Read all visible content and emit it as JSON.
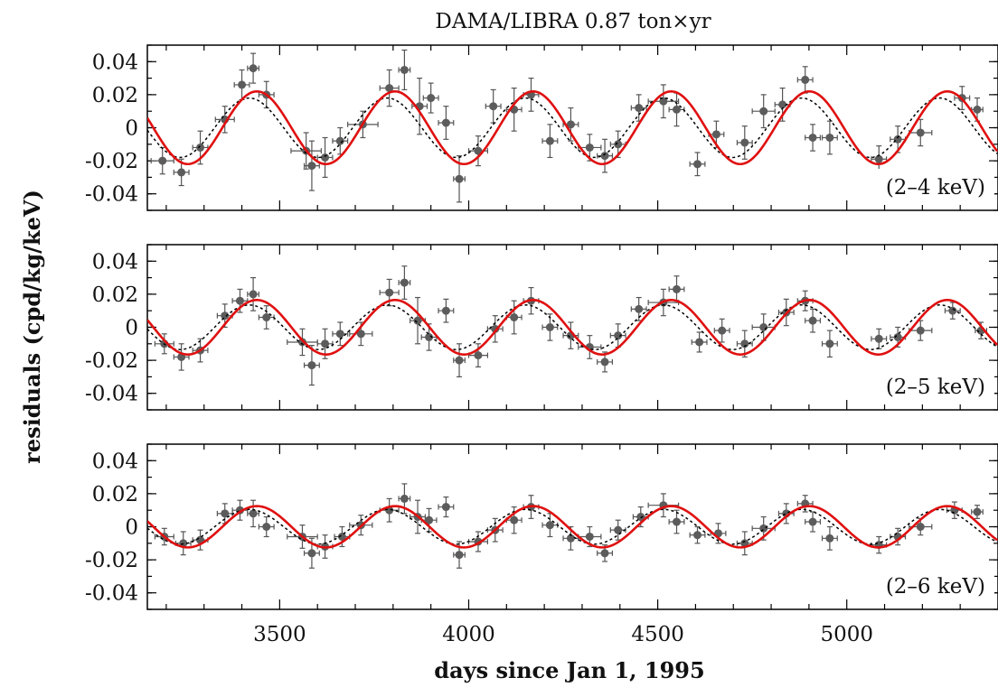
{
  "chart_data": {
    "type": "scatter",
    "title": "DAMA/LIBRA 0.87 ton×yr",
    "xlabel": "days since Jan 1, 1995",
    "ylabel": "residuals (cpd/kg/keV)",
    "xlim": [
      3150,
      5400
    ],
    "ylim": [
      -0.05,
      0.05
    ],
    "x_ticks": [
      3500,
      4000,
      4500,
      5000
    ],
    "y_ticks": [
      0.04,
      0.02,
      0,
      -0.02,
      -0.04
    ],
    "y_tick_labels": [
      "0.04",
      "0.02",
      "0",
      "-0.02",
      "-0.04"
    ],
    "panels": [
      {
        "range_label": "(2–4 keV)",
        "red_curve": {
          "amplitude": 0.022,
          "period": 365.25,
          "phase": 152.5
        },
        "dotted_curve": {
          "amplitude": 0.018,
          "period": 365.25,
          "phase": 132
        },
        "points": [
          {
            "x": 3190,
            "y": -0.02,
            "xerr": 30,
            "yerr": 0.008
          },
          {
            "x": 3240,
            "y": -0.027,
            "xerr": 20,
            "yerr": 0.008
          },
          {
            "x": 3290,
            "y": -0.012,
            "xerr": 20,
            "yerr": 0.01
          },
          {
            "x": 3355,
            "y": 0.005,
            "xerr": 25,
            "yerr": 0.008
          },
          {
            "x": 3400,
            "y": 0.026,
            "xerr": 20,
            "yerr": 0.009
          },
          {
            "x": 3430,
            "y": 0.036,
            "xerr": 15,
            "yerr": 0.009
          },
          {
            "x": 3465,
            "y": 0.02,
            "xerr": 20,
            "yerr": 0.008
          },
          {
            "x": 3570,
            "y": -0.014,
            "xerr": 40,
            "yerr": 0.011
          },
          {
            "x": 3585,
            "y": -0.023,
            "xerr": 20,
            "yerr": 0.015
          },
          {
            "x": 3620,
            "y": -0.018,
            "xerr": 20,
            "yerr": 0.012
          },
          {
            "x": 3660,
            "y": -0.008,
            "xerr": 20,
            "yerr": 0.008
          },
          {
            "x": 3720,
            "y": 0.002,
            "xerr": 40,
            "yerr": 0.008
          },
          {
            "x": 3790,
            "y": 0.024,
            "xerr": 25,
            "yerr": 0.011
          },
          {
            "x": 3830,
            "y": 0.035,
            "xerr": 15,
            "yerr": 0.012
          },
          {
            "x": 3870,
            "y": 0.013,
            "xerr": 20,
            "yerr": 0.017
          },
          {
            "x": 3900,
            "y": 0.018,
            "xerr": 20,
            "yerr": 0.009
          },
          {
            "x": 3940,
            "y": 0.003,
            "xerr": 20,
            "yerr": 0.01
          },
          {
            "x": 3975,
            "y": -0.031,
            "xerr": 15,
            "yerr": 0.014
          },
          {
            "x": 4025,
            "y": -0.014,
            "xerr": 25,
            "yerr": 0.009
          },
          {
            "x": 4065,
            "y": 0.013,
            "xerr": 20,
            "yerr": 0.01
          },
          {
            "x": 4120,
            "y": 0.011,
            "xerr": 20,
            "yerr": 0.013
          },
          {
            "x": 4165,
            "y": 0.02,
            "xerr": 20,
            "yerr": 0.01
          },
          {
            "x": 4215,
            "y": -0.008,
            "xerr": 20,
            "yerr": 0.01
          },
          {
            "x": 4270,
            "y": 0.002,
            "xerr": 20,
            "yerr": 0.01
          },
          {
            "x": 4320,
            "y": -0.012,
            "xerr": 30,
            "yerr": 0.008
          },
          {
            "x": 4360,
            "y": -0.017,
            "xerr": 20,
            "yerr": 0.01
          },
          {
            "x": 4395,
            "y": -0.01,
            "xerr": 20,
            "yerr": 0.008
          },
          {
            "x": 4450,
            "y": 0.012,
            "xerr": 20,
            "yerr": 0.008
          },
          {
            "x": 4515,
            "y": 0.016,
            "xerr": 40,
            "yerr": 0.01
          },
          {
            "x": 4550,
            "y": 0.011,
            "xerr": 20,
            "yerr": 0.01
          },
          {
            "x": 4605,
            "y": -0.022,
            "xerr": 20,
            "yerr": 0.007
          },
          {
            "x": 4655,
            "y": -0.004,
            "xerr": 20,
            "yerr": 0.008
          },
          {
            "x": 4730,
            "y": -0.009,
            "xerr": 20,
            "yerr": 0.01
          },
          {
            "x": 4780,
            "y": 0.01,
            "xerr": 30,
            "yerr": 0.01
          },
          {
            "x": 4830,
            "y": 0.014,
            "xerr": 20,
            "yerr": 0.01
          },
          {
            "x": 4890,
            "y": 0.029,
            "xerr": 20,
            "yerr": 0.008
          },
          {
            "x": 4910,
            "y": -0.006,
            "xerr": 20,
            "yerr": 0.008
          },
          {
            "x": 4955,
            "y": -0.006,
            "xerr": 20,
            "yerr": 0.01
          },
          {
            "x": 5085,
            "y": -0.019,
            "xerr": 20,
            "yerr": 0.008
          },
          {
            "x": 5135,
            "y": -0.007,
            "xerr": 20,
            "yerr": 0.008
          },
          {
            "x": 5195,
            "y": -0.003,
            "xerr": 30,
            "yerr": 0.008
          },
          {
            "x": 5305,
            "y": 0.018,
            "xerr": 20,
            "yerr": 0.007
          },
          {
            "x": 5345,
            "y": 0.011,
            "xerr": 15,
            "yerr": 0.007
          }
        ]
      },
      {
        "range_label": "(2–5 keV)",
        "red_curve": {
          "amplitude": 0.0165,
          "period": 365.25,
          "phase": 152.5
        },
        "dotted_curve": {
          "amplitude": 0.0135,
          "period": 365.25,
          "phase": 132
        },
        "points": [
          {
            "x": 3195,
            "y": -0.01,
            "xerr": 25,
            "yerr": 0.006
          },
          {
            "x": 3240,
            "y": -0.018,
            "xerr": 20,
            "yerr": 0.008
          },
          {
            "x": 3290,
            "y": -0.014,
            "xerr": 20,
            "yerr": 0.007
          },
          {
            "x": 3355,
            "y": 0.007,
            "xerr": 20,
            "yerr": 0.007
          },
          {
            "x": 3395,
            "y": 0.016,
            "xerr": 20,
            "yerr": 0.007
          },
          {
            "x": 3430,
            "y": 0.02,
            "xerr": 15,
            "yerr": 0.01
          },
          {
            "x": 3465,
            "y": 0.006,
            "xerr": 20,
            "yerr": 0.007
          },
          {
            "x": 3560,
            "y": -0.009,
            "xerr": 40,
            "yerr": 0.008
          },
          {
            "x": 3585,
            "y": -0.023,
            "xerr": 20,
            "yerr": 0.012
          },
          {
            "x": 3620,
            "y": -0.01,
            "xerr": 20,
            "yerr": 0.009
          },
          {
            "x": 3660,
            "y": -0.004,
            "xerr": 20,
            "yerr": 0.007
          },
          {
            "x": 3715,
            "y": -0.004,
            "xerr": 30,
            "yerr": 0.007
          },
          {
            "x": 3790,
            "y": 0.021,
            "xerr": 25,
            "yerr": 0.008
          },
          {
            "x": 3830,
            "y": 0.027,
            "xerr": 15,
            "yerr": 0.01
          },
          {
            "x": 3865,
            "y": 0.004,
            "xerr": 20,
            "yerr": 0.014
          },
          {
            "x": 3895,
            "y": -0.006,
            "xerr": 20,
            "yerr": 0.008
          },
          {
            "x": 3940,
            "y": 0.01,
            "xerr": 20,
            "yerr": 0.007
          },
          {
            "x": 3975,
            "y": -0.02,
            "xerr": 15,
            "yerr": 0.01
          },
          {
            "x": 4025,
            "y": -0.017,
            "xerr": 25,
            "yerr": 0.007
          },
          {
            "x": 4070,
            "y": -0.001,
            "xerr": 20,
            "yerr": 0.008
          },
          {
            "x": 4120,
            "y": 0.006,
            "xerr": 20,
            "yerr": 0.01
          },
          {
            "x": 4165,
            "y": 0.016,
            "xerr": 20,
            "yerr": 0.008
          },
          {
            "x": 4215,
            "y": 0.0,
            "xerr": 20,
            "yerr": 0.008
          },
          {
            "x": 4270,
            "y": -0.005,
            "xerr": 20,
            "yerr": 0.008
          },
          {
            "x": 4320,
            "y": -0.012,
            "xerr": 30,
            "yerr": 0.007
          },
          {
            "x": 4360,
            "y": -0.021,
            "xerr": 20,
            "yerr": 0.006
          },
          {
            "x": 4395,
            "y": -0.005,
            "xerr": 20,
            "yerr": 0.007
          },
          {
            "x": 4450,
            "y": 0.011,
            "xerr": 20,
            "yerr": 0.007
          },
          {
            "x": 4515,
            "y": 0.015,
            "xerr": 40,
            "yerr": 0.008
          },
          {
            "x": 4550,
            "y": 0.023,
            "xerr": 20,
            "yerr": 0.008
          },
          {
            "x": 4610,
            "y": -0.009,
            "xerr": 20,
            "yerr": 0.006
          },
          {
            "x": 4670,
            "y": -0.002,
            "xerr": 20,
            "yerr": 0.007
          },
          {
            "x": 4730,
            "y": -0.01,
            "xerr": 20,
            "yerr": 0.008
          },
          {
            "x": 4780,
            "y": 0.0,
            "xerr": 30,
            "yerr": 0.008
          },
          {
            "x": 4840,
            "y": 0.009,
            "xerr": 20,
            "yerr": 0.008
          },
          {
            "x": 4890,
            "y": 0.016,
            "xerr": 20,
            "yerr": 0.006
          },
          {
            "x": 4910,
            "y": 0.004,
            "xerr": 20,
            "yerr": 0.007
          },
          {
            "x": 4955,
            "y": -0.01,
            "xerr": 20,
            "yerr": 0.008
          },
          {
            "x": 5085,
            "y": -0.007,
            "xerr": 20,
            "yerr": 0.006
          },
          {
            "x": 5135,
            "y": -0.006,
            "xerr": 20,
            "yerr": 0.006
          },
          {
            "x": 5195,
            "y": -0.002,
            "xerr": 30,
            "yerr": 0.006
          },
          {
            "x": 5280,
            "y": 0.01,
            "xerr": 20,
            "yerr": 0.005
          },
          {
            "x": 5355,
            "y": -0.002,
            "xerr": 15,
            "yerr": 0.005
          }
        ]
      },
      {
        "range_label": "(2–6 keV)",
        "red_curve": {
          "amplitude": 0.0125,
          "period": 365.25,
          "phase": 152.5
        },
        "dotted_curve": {
          "amplitude": 0.0105,
          "period": 365.25,
          "phase": 132
        },
        "points": [
          {
            "x": 3195,
            "y": -0.006,
            "xerr": 25,
            "yerr": 0.005
          },
          {
            "x": 3245,
            "y": -0.01,
            "xerr": 20,
            "yerr": 0.007
          },
          {
            "x": 3290,
            "y": -0.008,
            "xerr": 20,
            "yerr": 0.006
          },
          {
            "x": 3355,
            "y": 0.008,
            "xerr": 20,
            "yerr": 0.006
          },
          {
            "x": 3395,
            "y": 0.01,
            "xerr": 20,
            "yerr": 0.006
          },
          {
            "x": 3430,
            "y": 0.008,
            "xerr": 15,
            "yerr": 0.008
          },
          {
            "x": 3465,
            "y": 0.0,
            "xerr": 20,
            "yerr": 0.006
          },
          {
            "x": 3560,
            "y": -0.006,
            "xerr": 40,
            "yerr": 0.007
          },
          {
            "x": 3585,
            "y": -0.016,
            "xerr": 20,
            "yerr": 0.009
          },
          {
            "x": 3620,
            "y": -0.012,
            "xerr": 20,
            "yerr": 0.007
          },
          {
            "x": 3665,
            "y": -0.006,
            "xerr": 20,
            "yerr": 0.006
          },
          {
            "x": 3715,
            "y": 0.001,
            "xerr": 30,
            "yerr": 0.006
          },
          {
            "x": 3790,
            "y": 0.01,
            "xerr": 25,
            "yerr": 0.007
          },
          {
            "x": 3830,
            "y": 0.017,
            "xerr": 15,
            "yerr": 0.009
          },
          {
            "x": 3865,
            "y": 0.006,
            "xerr": 20,
            "yerr": 0.01
          },
          {
            "x": 3895,
            "y": 0.004,
            "xerr": 20,
            "yerr": 0.007
          },
          {
            "x": 3940,
            "y": 0.012,
            "xerr": 20,
            "yerr": 0.006
          },
          {
            "x": 3975,
            "y": -0.017,
            "xerr": 15,
            "yerr": 0.008
          },
          {
            "x": 4025,
            "y": -0.009,
            "xerr": 25,
            "yerr": 0.006
          },
          {
            "x": 4070,
            "y": -0.002,
            "xerr": 20,
            "yerr": 0.007
          },
          {
            "x": 4120,
            "y": 0.004,
            "xerr": 20,
            "yerr": 0.008
          },
          {
            "x": 4165,
            "y": 0.012,
            "xerr": 20,
            "yerr": 0.007
          },
          {
            "x": 4215,
            "y": 0.001,
            "xerr": 20,
            "yerr": 0.007
          },
          {
            "x": 4270,
            "y": -0.007,
            "xerr": 20,
            "yerr": 0.007
          },
          {
            "x": 4320,
            "y": -0.006,
            "xerr": 30,
            "yerr": 0.006
          },
          {
            "x": 4360,
            "y": -0.016,
            "xerr": 20,
            "yerr": 0.005
          },
          {
            "x": 4395,
            "y": -0.002,
            "xerr": 20,
            "yerr": 0.006
          },
          {
            "x": 4455,
            "y": 0.006,
            "xerr": 20,
            "yerr": 0.006
          },
          {
            "x": 4515,
            "y": 0.013,
            "xerr": 40,
            "yerr": 0.007
          },
          {
            "x": 4550,
            "y": 0.003,
            "xerr": 20,
            "yerr": 0.007
          },
          {
            "x": 4605,
            "y": -0.005,
            "xerr": 20,
            "yerr": 0.005
          },
          {
            "x": 4660,
            "y": -0.004,
            "xerr": 20,
            "yerr": 0.006
          },
          {
            "x": 4730,
            "y": -0.01,
            "xerr": 20,
            "yerr": 0.007
          },
          {
            "x": 4780,
            "y": -0.001,
            "xerr": 30,
            "yerr": 0.007
          },
          {
            "x": 4840,
            "y": 0.008,
            "xerr": 20,
            "yerr": 0.006
          },
          {
            "x": 4890,
            "y": 0.014,
            "xerr": 20,
            "yerr": 0.005
          },
          {
            "x": 4910,
            "y": 0.003,
            "xerr": 20,
            "yerr": 0.006
          },
          {
            "x": 4955,
            "y": -0.007,
            "xerr": 20,
            "yerr": 0.007
          },
          {
            "x": 5085,
            "y": -0.011,
            "xerr": 20,
            "yerr": 0.005
          },
          {
            "x": 5135,
            "y": -0.006,
            "xerr": 20,
            "yerr": 0.005
          },
          {
            "x": 5195,
            "y": 0.0,
            "xerr": 30,
            "yerr": 0.005
          },
          {
            "x": 5285,
            "y": 0.01,
            "xerr": 20,
            "yerr": 0.005
          },
          {
            "x": 5345,
            "y": 0.009,
            "xerr": 15,
            "yerr": 0.004
          }
        ]
      }
    ],
    "colors": {
      "points": "#5c5c5c",
      "errorbars": "#555555",
      "fit_solid": "#e01010",
      "fit_dotted": "#000000"
    },
    "grid": false
  }
}
